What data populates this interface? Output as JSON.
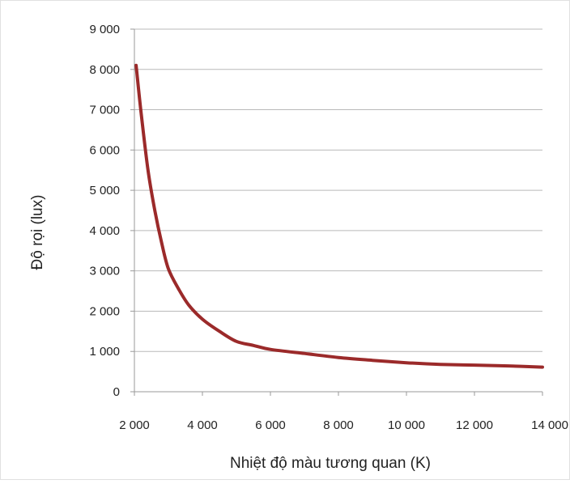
{
  "chart_data": {
    "type": "line",
    "title": "",
    "xlabel": "Nhiệt độ màu tương quan (K)",
    "ylabel": "Độ rọi (lux)",
    "xlim": [
      2000,
      14000
    ],
    "ylim": [
      0,
      9000
    ],
    "xticks": [
      2000,
      4000,
      6000,
      8000,
      10000,
      12000,
      14000
    ],
    "xtick_labels": [
      "2 000",
      "4 000",
      "6 000",
      "8 000",
      "10 000",
      "12 000",
      "14 000"
    ],
    "yticks": [
      0,
      1000,
      2000,
      3000,
      4000,
      5000,
      6000,
      7000,
      8000,
      9000
    ],
    "ytick_labels": [
      "0",
      "1 000",
      "2 000",
      "3 000",
      "4 000",
      "5 000",
      "6 000",
      "7 000",
      "8 000",
      "9 000"
    ],
    "grid": "horizontal",
    "legend": "none",
    "series": [
      {
        "color": "#9b2a2a",
        "x": [
          2050,
          2200,
          2400,
          2600,
          2800,
          3000,
          3300,
          3600,
          4000,
          4500,
          5000,
          5500,
          6000,
          7000,
          8000,
          9000,
          10000,
          11000,
          12000,
          13000,
          14000
        ],
        "y": [
          8100,
          6900,
          5500,
          4500,
          3700,
          3050,
          2550,
          2150,
          1800,
          1500,
          1250,
          1150,
          1050,
          950,
          850,
          780,
          720,
          680,
          660,
          640,
          610
        ]
      }
    ]
  }
}
